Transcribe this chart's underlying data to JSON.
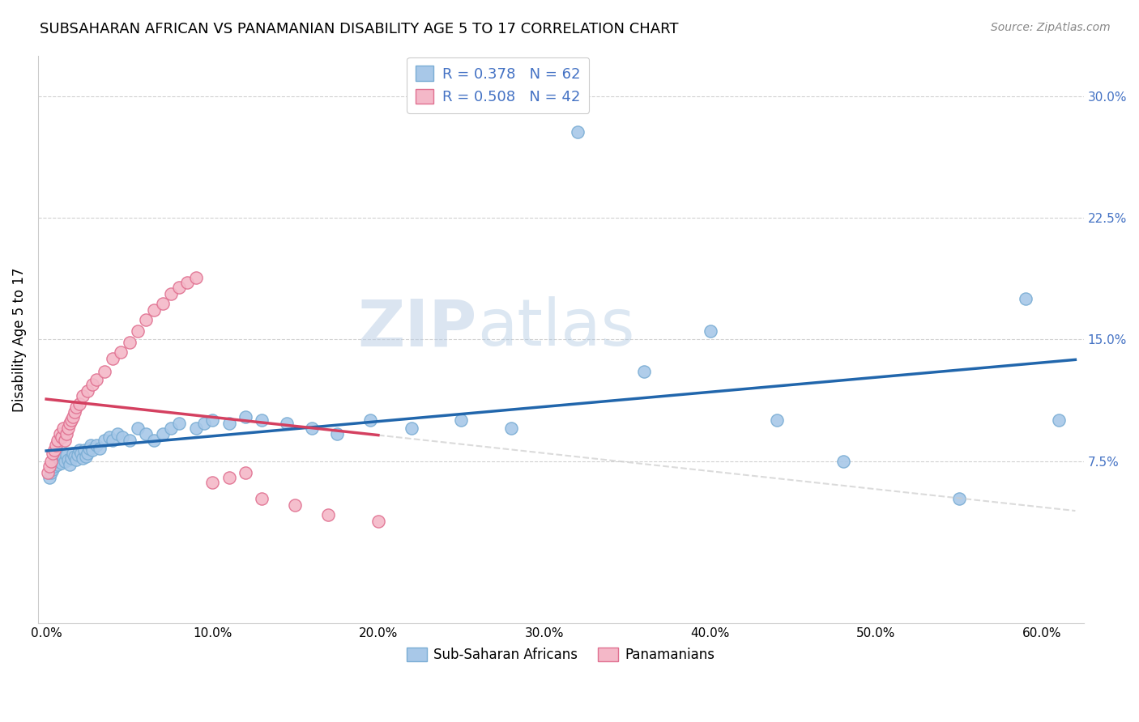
{
  "title": "SUBSAHARAN AFRICAN VS PANAMANIAN DISABILITY AGE 5 TO 17 CORRELATION CHART",
  "source": "Source: ZipAtlas.com",
  "ylabel": "Disability Age 5 to 17",
  "xlabel_ticks": [
    "0.0%",
    "10.0%",
    "20.0%",
    "30.0%",
    "40.0%",
    "50.0%",
    "60.0%"
  ],
  "xlabel_vals": [
    0.0,
    0.1,
    0.2,
    0.3,
    0.4,
    0.5,
    0.6
  ],
  "ylabel_ticks": [
    "7.5%",
    "15.0%",
    "22.5%",
    "30.0%"
  ],
  "ylabel_vals": [
    0.075,
    0.15,
    0.225,
    0.3
  ],
  "xlim": [
    -0.005,
    0.625
  ],
  "ylim": [
    -0.025,
    0.325
  ],
  "blue_R": 0.378,
  "blue_N": 62,
  "pink_R": 0.508,
  "pink_N": 42,
  "blue_color": "#a8c8e8",
  "blue_edge_color": "#7aadd4",
  "pink_color": "#f4b8c8",
  "pink_edge_color": "#e07090",
  "blue_line_color": "#2166ac",
  "pink_line_color": "#d44060",
  "ytick_color": "#4472c4",
  "watermark_color": "#d0ddf0",
  "blue_scatter_x": [
    0.002,
    0.003,
    0.004,
    0.005,
    0.006,
    0.007,
    0.008,
    0.009,
    0.01,
    0.011,
    0.012,
    0.013,
    0.014,
    0.015,
    0.016,
    0.017,
    0.018,
    0.019,
    0.02,
    0.021,
    0.022,
    0.023,
    0.024,
    0.025,
    0.026,
    0.027,
    0.028,
    0.03,
    0.032,
    0.035,
    0.038,
    0.04,
    0.043,
    0.046,
    0.05,
    0.055,
    0.06,
    0.065,
    0.07,
    0.075,
    0.08,
    0.09,
    0.095,
    0.1,
    0.11,
    0.12,
    0.13,
    0.145,
    0.16,
    0.175,
    0.195,
    0.22,
    0.25,
    0.28,
    0.32,
    0.36,
    0.4,
    0.44,
    0.48,
    0.55,
    0.59,
    0.61
  ],
  "blue_scatter_y": [
    0.065,
    0.068,
    0.07,
    0.072,
    0.075,
    0.073,
    0.076,
    0.074,
    0.078,
    0.075,
    0.079,
    0.076,
    0.073,
    0.077,
    0.08,
    0.078,
    0.076,
    0.079,
    0.082,
    0.08,
    0.077,
    0.082,
    0.078,
    0.08,
    0.083,
    0.085,
    0.082,
    0.085,
    0.083,
    0.088,
    0.09,
    0.088,
    0.092,
    0.09,
    0.088,
    0.095,
    0.092,
    0.088,
    0.092,
    0.095,
    0.098,
    0.095,
    0.098,
    0.1,
    0.098,
    0.102,
    0.1,
    0.098,
    0.095,
    0.092,
    0.1,
    0.095,
    0.1,
    0.095,
    0.278,
    0.13,
    0.155,
    0.1,
    0.075,
    0.052,
    0.175,
    0.1
  ],
  "pink_scatter_x": [
    0.001,
    0.002,
    0.003,
    0.004,
    0.005,
    0.006,
    0.007,
    0.008,
    0.009,
    0.01,
    0.011,
    0.012,
    0.013,
    0.014,
    0.015,
    0.016,
    0.017,
    0.018,
    0.02,
    0.022,
    0.025,
    0.028,
    0.03,
    0.035,
    0.04,
    0.045,
    0.05,
    0.055,
    0.06,
    0.065,
    0.07,
    0.075,
    0.08,
    0.085,
    0.09,
    0.1,
    0.11,
    0.12,
    0.13,
    0.15,
    0.17,
    0.2
  ],
  "pink_scatter_y": [
    0.068,
    0.072,
    0.075,
    0.08,
    0.082,
    0.085,
    0.088,
    0.092,
    0.09,
    0.095,
    0.088,
    0.092,
    0.095,
    0.098,
    0.1,
    0.102,
    0.105,
    0.108,
    0.11,
    0.115,
    0.118,
    0.122,
    0.125,
    0.13,
    0.138,
    0.142,
    0.148,
    0.155,
    0.162,
    0.168,
    0.172,
    0.178,
    0.182,
    0.185,
    0.188,
    0.062,
    0.065,
    0.068,
    0.052,
    0.048,
    0.042,
    0.038
  ]
}
